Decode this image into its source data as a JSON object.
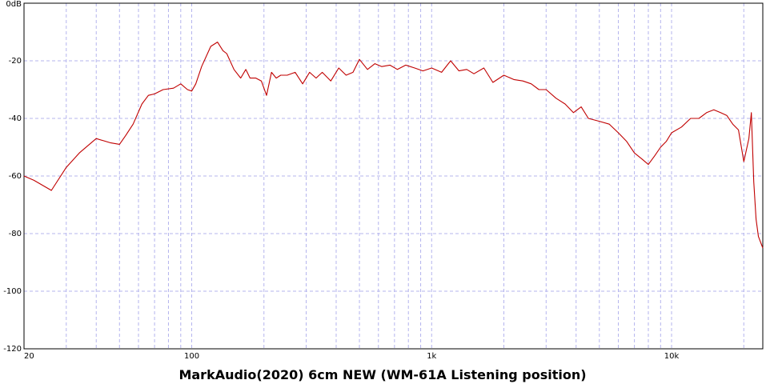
{
  "chart_data": {
    "type": "line",
    "title": "MarkAudio(2020) 6cm NEW  (WM-61A Listening position)",
    "xlabel": "",
    "ylabel": "",
    "x_scale": "log",
    "xlim": [
      20,
      24000
    ],
    "ylim": [
      -120,
      0
    ],
    "grid": true,
    "x_tick_labels": [
      {
        "value": 20,
        "label": "20"
      },
      {
        "value": 100,
        "label": "100"
      },
      {
        "value": 1000,
        "label": "1k"
      },
      {
        "value": 10000,
        "label": "10k"
      }
    ],
    "y_tick_labels": [
      {
        "value": 0,
        "label": "0dB"
      },
      {
        "value": -20,
        "label": "-20"
      },
      {
        "value": -40,
        "label": "-40"
      },
      {
        "value": -60,
        "label": "-60"
      },
      {
        "value": -80,
        "label": "-80"
      },
      {
        "value": -100,
        "label": "-100"
      },
      {
        "value": -120,
        "label": "-120"
      }
    ],
    "series": [
      {
        "color": "#c00000",
        "x": [
          20,
          22,
          26,
          30,
          34,
          40,
          46,
          50,
          53,
          57,
          62,
          66,
          70,
          76,
          84,
          90,
          96,
          100,
          104,
          110,
          120,
          128,
          135,
          140,
          150,
          160,
          168,
          175,
          185,
          195,
          205,
          215,
          225,
          235,
          250,
          270,
          290,
          310,
          330,
          350,
          380,
          410,
          440,
          470,
          500,
          540,
          580,
          620,
          670,
          720,
          780,
          850,
          920,
          1000,
          1100,
          1200,
          1300,
          1400,
          1500,
          1650,
          1800,
          2000,
          2200,
          2400,
          2600,
          2800,
          3000,
          3300,
          3600,
          3900,
          4200,
          4500,
          5000,
          5500,
          6000,
          6500,
          7000,
          7500,
          8000,
          8500,
          9000,
          9500,
          10000,
          11000,
          12000,
          13000,
          14000,
          15000,
          16000,
          17000,
          18000,
          19000,
          20000,
          21000,
          21500,
          22000,
          22500,
          23000,
          24000
        ],
        "y": [
          -60,
          -61.5,
          -65,
          -57,
          -52,
          -47,
          -48.5,
          -49,
          -46,
          -42,
          -35,
          -32,
          -31.5,
          -30,
          -29.5,
          -28,
          -30,
          -30.5,
          -28,
          -22,
          -15,
          -13.5,
          -16.5,
          -17.5,
          -23,
          -26,
          -23,
          -26,
          -26,
          -27,
          -32,
          -24,
          -26,
          -25,
          -25,
          -24,
          -28,
          -24,
          -26,
          -24,
          -27,
          -22.5,
          -25,
          -24,
          -19.5,
          -23,
          -21,
          -22,
          -21.5,
          -23,
          -21.5,
          -22.5,
          -23.5,
          -22.5,
          -24,
          -20,
          -23.5,
          -23,
          -24.5,
          -22.5,
          -27.5,
          -25,
          -26.5,
          -27,
          -28,
          -30,
          -30,
          -33,
          -35,
          -38,
          -36,
          -40,
          -41,
          -42,
          -45,
          -48,
          -52,
          -54,
          -56,
          -53,
          -50,
          -48,
          -45,
          -43,
          -40,
          -40,
          -38,
          -37,
          -38,
          -39,
          -42,
          -44,
          -55,
          -47,
          -38,
          -62,
          -75,
          -81,
          -85
        ]
      }
    ]
  }
}
